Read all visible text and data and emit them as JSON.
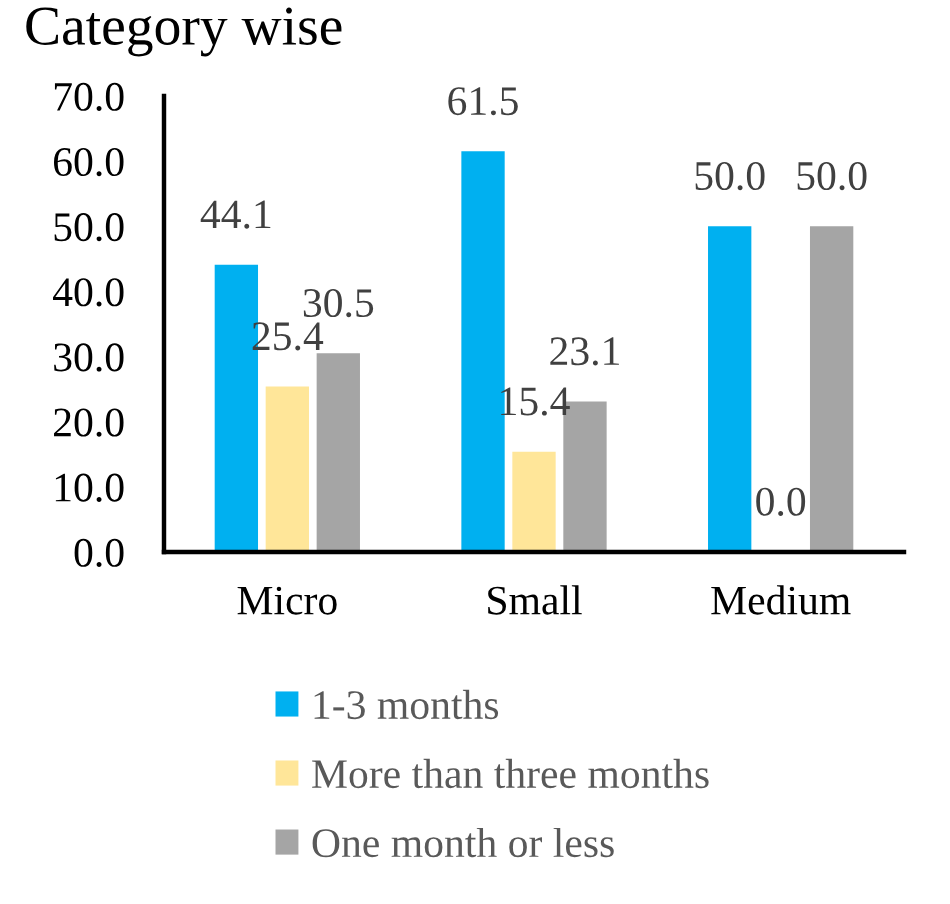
{
  "chart_data": {
    "type": "bar",
    "title": "Category wise",
    "categories": [
      "Micro",
      "Small",
      "Medium"
    ],
    "series": [
      {
        "name": "1-3 months",
        "color": "#00b0f0",
        "values": [
          44.1,
          61.5,
          50.0
        ],
        "value_labels": [
          "44.1",
          "61.5",
          "50.0"
        ]
      },
      {
        "name": "More than three months",
        "color": "#ffe699",
        "values": [
          25.4,
          15.4,
          0.0
        ],
        "value_labels": [
          "25.4",
          "15.4",
          "0.0"
        ]
      },
      {
        "name": "One month or less",
        "color": "#a5a5a5",
        "values": [
          30.5,
          23.1,
          50.0
        ],
        "value_labels": [
          "30.5",
          "23.1",
          "50.0"
        ]
      }
    ],
    "ylim": [
      0,
      70
    ],
    "yticks": [
      {
        "value": 0,
        "label": "0.0"
      },
      {
        "value": 10,
        "label": "10.0"
      },
      {
        "value": 20,
        "label": "20.0"
      },
      {
        "value": 30,
        "label": "30.0"
      },
      {
        "value": 40,
        "label": "40.0"
      },
      {
        "value": 50,
        "label": "50.0"
      },
      {
        "value": 60,
        "label": "60.0"
      },
      {
        "value": 70,
        "label": "70.0"
      }
    ],
    "legend": "bottom",
    "grid": false
  }
}
